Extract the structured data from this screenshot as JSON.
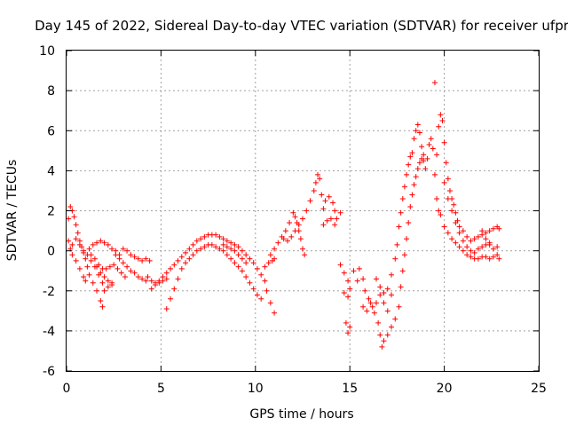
{
  "chart_data": {
    "type": "scatter",
    "title": "Day 145 of 2022, Sidereal Day-to-day VTEC variation (SDTVAR) for receiver ufpr",
    "xlabel": "GPS time / hours",
    "ylabel": "SDTVAR / TECUs",
    "xlim": [
      0,
      25
    ],
    "ylim": [
      -6,
      10
    ],
    "xticks": [
      "0",
      "5",
      "10",
      "15",
      "20",
      "25"
    ],
    "yticks": [
      "-6",
      "-4",
      "-2",
      "0",
      "2",
      "4",
      "6",
      "8",
      "10"
    ],
    "grid": true,
    "marker": "+",
    "color": "#ff0000",
    "series": [
      {
        "name": "SDTVAR",
        "points": [
          [
            0.1,
            1.6
          ],
          [
            0.2,
            2.2
          ],
          [
            0.3,
            2.0
          ],
          [
            0.4,
            1.7
          ],
          [
            0.5,
            1.3
          ],
          [
            0.6,
            0.9
          ],
          [
            0.7,
            0.5
          ],
          [
            0.8,
            0.2
          ],
          [
            0.9,
            -0.1
          ],
          [
            1.0,
            -0.4
          ],
          [
            1.1,
            -0.8
          ],
          [
            1.2,
            -1.2
          ],
          [
            1.4,
            -1.6
          ],
          [
            1.6,
            -2.0
          ],
          [
            1.8,
            -2.5
          ],
          [
            1.9,
            -2.8
          ],
          [
            0.1,
            0.5
          ],
          [
            0.2,
            0.1
          ],
          [
            0.3,
            0.3
          ],
          [
            0.5,
            0.6
          ],
          [
            0.7,
            0.3
          ],
          [
            0.9,
            0.0
          ],
          [
            1.1,
            -0.2
          ],
          [
            1.3,
            -0.5
          ],
          [
            1.5,
            -0.8
          ],
          [
            1.7,
            -1.2
          ],
          [
            1.9,
            -1.6
          ],
          [
            2.0,
            -2.0
          ],
          [
            2.2,
            -1.8
          ],
          [
            2.4,
            -1.6
          ],
          [
            0.3,
            -0.2
          ],
          [
            0.5,
            -0.5
          ],
          [
            0.7,
            -0.9
          ],
          [
            0.9,
            -1.3
          ],
          [
            1.0,
            -1.5
          ],
          [
            1.2,
            0.1
          ],
          [
            1.4,
            0.3
          ],
          [
            1.6,
            0.4
          ],
          [
            1.8,
            0.5
          ],
          [
            2.0,
            0.4
          ],
          [
            2.2,
            0.3
          ],
          [
            2.4,
            0.1
          ],
          [
            2.6,
            -0.2
          ],
          [
            2.8,
            -0.4
          ],
          [
            3.0,
            -0.6
          ],
          [
            3.2,
            -0.8
          ],
          [
            3.4,
            -1.0
          ],
          [
            3.6,
            -1.1
          ],
          [
            3.8,
            -1.3
          ],
          [
            4.0,
            -1.4
          ],
          [
            4.2,
            -1.5
          ],
          [
            1.3,
            -0.2
          ],
          [
            1.5,
            -0.4
          ],
          [
            1.7,
            -0.7
          ],
          [
            1.9,
            -0.9
          ],
          [
            2.1,
            -0.9
          ],
          [
            2.3,
            -0.8
          ],
          [
            2.5,
            -0.7
          ],
          [
            2.7,
            -0.9
          ],
          [
            2.9,
            -1.1
          ],
          [
            3.1,
            -1.3
          ],
          [
            1.6,
            -0.8
          ],
          [
            1.8,
            -1.1
          ],
          [
            2.0,
            -1.3
          ],
          [
            2.2,
            -1.5
          ],
          [
            2.4,
            -1.7
          ],
          [
            2.6,
            0.0
          ],
          [
            2.8,
            -0.2
          ],
          [
            3.0,
            0.1
          ],
          [
            3.2,
            0.0
          ],
          [
            3.4,
            -0.2
          ],
          [
            3.6,
            -0.3
          ],
          [
            3.8,
            -0.4
          ],
          [
            4.0,
            -0.5
          ],
          [
            4.2,
            -0.4
          ],
          [
            4.4,
            -0.5
          ],
          [
            4.3,
            -1.3
          ],
          [
            4.5,
            -1.5
          ],
          [
            4.7,
            -1.6
          ],
          [
            4.9,
            -1.5
          ],
          [
            5.1,
            -1.3
          ],
          [
            5.3,
            -1.1
          ],
          [
            5.5,
            -0.9
          ],
          [
            5.7,
            -0.7
          ],
          [
            5.9,
            -0.5
          ],
          [
            6.1,
            -0.3
          ],
          [
            6.3,
            -0.1
          ],
          [
            6.5,
            0.1
          ],
          [
            6.7,
            0.3
          ],
          [
            6.9,
            0.5
          ],
          [
            7.1,
            0.6
          ],
          [
            7.3,
            0.7
          ],
          [
            7.5,
            0.8
          ],
          [
            7.7,
            0.8
          ],
          [
            7.9,
            0.8
          ],
          [
            8.1,
            0.7
          ],
          [
            8.3,
            0.6
          ],
          [
            8.5,
            0.5
          ],
          [
            8.7,
            0.4
          ],
          [
            8.9,
            0.3
          ],
          [
            9.1,
            0.2
          ],
          [
            9.3,
            0.0
          ],
          [
            9.5,
            -0.2
          ],
          [
            9.7,
            -0.4
          ],
          [
            9.9,
            -0.6
          ],
          [
            10.1,
            -0.9
          ],
          [
            10.3,
            -1.2
          ],
          [
            10.5,
            -1.5
          ],
          [
            4.5,
            -1.9
          ],
          [
            4.7,
            -1.7
          ],
          [
            4.9,
            -1.6
          ],
          [
            5.1,
            -1.5
          ],
          [
            5.3,
            -1.4
          ],
          [
            5.3,
            -2.9
          ],
          [
            5.5,
            -2.4
          ],
          [
            5.7,
            -1.9
          ],
          [
            5.9,
            -1.4
          ],
          [
            6.1,
            -0.9
          ],
          [
            6.3,
            -0.6
          ],
          [
            6.5,
            -0.4
          ],
          [
            6.7,
            -0.2
          ],
          [
            6.9,
            0.0
          ],
          [
            7.1,
            0.1
          ],
          [
            7.3,
            0.2
          ],
          [
            7.5,
            0.3
          ],
          [
            7.7,
            0.3
          ],
          [
            7.9,
            0.2
          ],
          [
            8.1,
            0.1
          ],
          [
            8.3,
            0.0
          ],
          [
            8.5,
            -0.2
          ],
          [
            8.7,
            -0.4
          ],
          [
            8.9,
            -0.6
          ],
          [
            9.1,
            -0.8
          ],
          [
            9.3,
            -1.0
          ],
          [
            9.5,
            -1.3
          ],
          [
            9.7,
            -1.6
          ],
          [
            9.9,
            -1.9
          ],
          [
            10.1,
            -2.2
          ],
          [
            10.3,
            -2.4
          ],
          [
            8.3,
            0.3
          ],
          [
            8.5,
            0.2
          ],
          [
            8.7,
            0.1
          ],
          [
            8.9,
            0.0
          ],
          [
            9.1,
            -0.2
          ],
          [
            9.3,
            -0.4
          ],
          [
            9.5,
            -0.6
          ],
          [
            10.5,
            -0.8
          ],
          [
            10.7,
            -0.6
          ],
          [
            10.9,
            -0.5
          ],
          [
            11.0,
            -0.4
          ],
          [
            10.6,
            -2.0
          ],
          [
            10.8,
            -2.6
          ],
          [
            11.0,
            -3.1
          ],
          [
            10.8,
            -0.2
          ],
          [
            11.0,
            0.1
          ],
          [
            11.2,
            0.4
          ],
          [
            11.4,
            0.7
          ],
          [
            11.6,
            1.0
          ],
          [
            11.8,
            1.4
          ],
          [
            12.0,
            1.9
          ],
          [
            12.1,
            1.7
          ],
          [
            12.2,
            1.4
          ],
          [
            12.3,
            1.0
          ],
          [
            12.4,
            0.6
          ],
          [
            12.5,
            0.1
          ],
          [
            12.6,
            -0.2
          ],
          [
            11.5,
            0.6
          ],
          [
            11.7,
            0.5
          ],
          [
            11.9,
            0.7
          ],
          [
            12.1,
            1.0
          ],
          [
            12.3,
            1.3
          ],
          [
            12.5,
            1.6
          ],
          [
            12.7,
            2.0
          ],
          [
            12.9,
            2.5
          ],
          [
            13.1,
            3.0
          ],
          [
            13.2,
            3.4
          ],
          [
            13.3,
            3.8
          ],
          [
            13.4,
            3.6
          ],
          [
            13.5,
            2.8
          ],
          [
            13.6,
            2.1
          ],
          [
            13.7,
            2.5
          ],
          [
            13.9,
            2.7
          ],
          [
            14.1,
            2.4
          ],
          [
            14.2,
            2.0
          ],
          [
            14.3,
            1.6
          ],
          [
            13.6,
            1.3
          ],
          [
            13.8,
            1.5
          ],
          [
            14.0,
            1.6
          ],
          [
            14.2,
            1.3
          ],
          [
            14.5,
            1.9
          ],
          [
            14.5,
            -0.7
          ],
          [
            14.7,
            -1.1
          ],
          [
            14.9,
            -1.5
          ],
          [
            15.0,
            -1.9
          ],
          [
            14.7,
            -2.1
          ],
          [
            14.9,
            -2.3
          ],
          [
            14.8,
            -3.6
          ],
          [
            14.9,
            -4.1
          ],
          [
            15.0,
            -3.8
          ],
          [
            15.2,
            -1.0
          ],
          [
            15.4,
            -1.5
          ],
          [
            15.5,
            -0.9
          ],
          [
            15.7,
            -1.4
          ],
          [
            15.8,
            -2.0
          ],
          [
            16.0,
            -2.4
          ],
          [
            16.2,
            -2.8
          ],
          [
            16.4,
            -2.6
          ],
          [
            16.6,
            -2.2
          ],
          [
            16.8,
            -2.6
          ],
          [
            17.0,
            -3.0
          ],
          [
            15.7,
            -2.8
          ],
          [
            15.9,
            -3.0
          ],
          [
            16.1,
            -2.6
          ],
          [
            16.3,
            -3.1
          ],
          [
            16.5,
            -3.6
          ],
          [
            16.6,
            -4.2
          ],
          [
            16.7,
            -4.8
          ],
          [
            16.8,
            -4.5
          ],
          [
            17.0,
            -4.2
          ],
          [
            17.2,
            -3.8
          ],
          [
            17.4,
            -3.4
          ],
          [
            17.6,
            -2.8
          ],
          [
            16.4,
            -1.4
          ],
          [
            16.6,
            -1.8
          ],
          [
            16.8,
            -2.1
          ],
          [
            17.0,
            -1.9
          ],
          [
            17.2,
            -2.2
          ],
          [
            17.2,
            -1.2
          ],
          [
            17.4,
            -0.4
          ],
          [
            17.5,
            0.3
          ],
          [
            17.6,
            1.2
          ],
          [
            17.7,
            1.9
          ],
          [
            17.8,
            2.6
          ],
          [
            17.9,
            3.2
          ],
          [
            18.0,
            3.8
          ],
          [
            18.1,
            4.3
          ],
          [
            18.2,
            4.7
          ],
          [
            18.3,
            4.9
          ],
          [
            17.7,
            -1.8
          ],
          [
            17.8,
            -1.0
          ],
          [
            17.9,
            -0.2
          ],
          [
            18.0,
            0.6
          ],
          [
            18.1,
            1.4
          ],
          [
            18.2,
            2.2
          ],
          [
            18.3,
            2.8
          ],
          [
            18.4,
            3.3
          ],
          [
            18.5,
            3.7
          ],
          [
            18.6,
            4.1
          ],
          [
            18.7,
            4.4
          ],
          [
            18.8,
            4.6
          ],
          [
            18.9,
            4.8
          ],
          [
            18.4,
            5.6
          ],
          [
            18.5,
            6.0
          ],
          [
            18.6,
            6.3
          ],
          [
            18.7,
            5.9
          ],
          [
            18.8,
            5.2
          ],
          [
            18.9,
            4.5
          ],
          [
            19.0,
            4.1
          ],
          [
            19.1,
            4.6
          ],
          [
            19.2,
            5.3
          ],
          [
            19.3,
            5.6
          ],
          [
            19.4,
            5.1
          ],
          [
            19.5,
            3.8
          ],
          [
            19.6,
            2.6
          ],
          [
            19.7,
            2.0
          ],
          [
            19.8,
            1.8
          ],
          [
            19.5,
            8.4
          ],
          [
            19.6,
            4.8
          ],
          [
            19.7,
            6.2
          ],
          [
            19.8,
            6.8
          ],
          [
            19.9,
            6.5
          ],
          [
            20.0,
            5.4
          ],
          [
            20.1,
            4.4
          ],
          [
            20.2,
            3.6
          ],
          [
            20.3,
            3.0
          ],
          [
            20.4,
            2.6
          ],
          [
            20.5,
            2.3
          ],
          [
            20.6,
            1.9
          ],
          [
            20.7,
            1.5
          ],
          [
            20.8,
            1.2
          ],
          [
            21.0,
            1.0
          ],
          [
            21.2,
            0.7
          ],
          [
            21.4,
            0.5
          ],
          [
            21.6,
            0.6
          ],
          [
            21.8,
            0.7
          ],
          [
            22.0,
            0.8
          ],
          [
            22.2,
            0.9
          ],
          [
            22.4,
            1.0
          ],
          [
            22.6,
            1.1
          ],
          [
            22.8,
            1.2
          ],
          [
            20.0,
            3.4
          ],
          [
            20.2,
            2.6
          ],
          [
            20.4,
            2.0
          ],
          [
            20.6,
            1.4
          ],
          [
            20.8,
            0.9
          ],
          [
            21.0,
            0.5
          ],
          [
            21.2,
            0.2
          ],
          [
            21.4,
            0.0
          ],
          [
            21.6,
            -0.1
          ],
          [
            21.8,
            0.1
          ],
          [
            22.0,
            0.2
          ],
          [
            22.2,
            0.3
          ],
          [
            22.4,
            0.4
          ],
          [
            20.0,
            1.2
          ],
          [
            20.2,
            0.9
          ],
          [
            20.4,
            0.6
          ],
          [
            20.6,
            0.4
          ],
          [
            20.8,
            0.2
          ],
          [
            21.0,
            0.0
          ],
          [
            21.2,
            -0.2
          ],
          [
            21.4,
            -0.3
          ],
          [
            21.6,
            -0.4
          ],
          [
            21.8,
            -0.4
          ],
          [
            22.0,
            -0.3
          ],
          [
            22.2,
            -0.3
          ],
          [
            22.4,
            -0.4
          ],
          [
            22.6,
            -0.3
          ],
          [
            22.8,
            -0.2
          ],
          [
            22.9,
            -0.4
          ],
          [
            22.0,
            1.0
          ],
          [
            22.2,
            0.6
          ],
          [
            22.4,
            0.3
          ],
          [
            22.6,
            0.1
          ],
          [
            22.8,
            0.2
          ],
          [
            22.9,
            1.1
          ]
        ]
      }
    ]
  }
}
